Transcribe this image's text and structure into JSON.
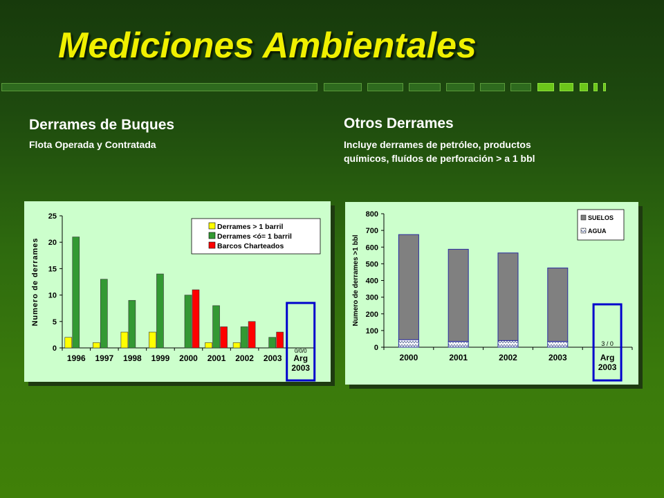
{
  "title": "Mediciones Ambientales",
  "left": {
    "title": "Derrames de Buques",
    "subtitle": "Flota Operada y Contratada"
  },
  "right": {
    "title": "Otros Derrames",
    "subtitle_line1": "Incluye derrames de petróleo, productos",
    "subtitle_line2": "químicos, fluídos de perforación > a 1 bbl"
  },
  "colors": {
    "yellow": "#ffff00",
    "green": "#339933",
    "red": "#ff0000",
    "gray": "#808080",
    "highlight_box": "#0000cc"
  },
  "chart_data": [
    {
      "type": "bar",
      "ylabel": "Numero de derrames",
      "ylim": [
        0,
        25
      ],
      "yticks": [
        0,
        5,
        10,
        15,
        20,
        25
      ],
      "categories": [
        "1996",
        "1997",
        "1998",
        "1999",
        "2000",
        "2001",
        "2002",
        "2003"
      ],
      "extra_category": {
        "line1": "Arg",
        "line2": "2003",
        "value_label": "0/0/0",
        "highlighted": true
      },
      "series": [
        {
          "name": "Derrames > 1 barril",
          "color": "#ffff00",
          "values": [
            2,
            1,
            3,
            3,
            null,
            1,
            1,
            null
          ]
        },
        {
          "name": "Derrames <ó= 1 barril",
          "color": "#339933",
          "values": [
            21,
            13,
            9,
            14,
            10,
            8,
            4,
            2
          ]
        },
        {
          "name": "Barcos Charteados",
          "color": "#ff0000",
          "values": [
            null,
            null,
            null,
            null,
            11,
            4,
            5,
            3
          ]
        }
      ],
      "legend": "top-right",
      "grid": false
    },
    {
      "type": "bar",
      "stacked": true,
      "ylabel": "Numero de derrames >1 bbl",
      "ylim": [
        0,
        800
      ],
      "yticks": [
        0,
        100,
        200,
        300,
        400,
        500,
        600,
        700,
        800
      ],
      "categories": [
        "2000",
        "2001",
        "2002",
        "2003"
      ],
      "extra_category": {
        "line1": "Arg",
        "line2": "2003",
        "value_label": "3 / 0",
        "highlighted": true
      },
      "series": [
        {
          "name": "SUELOS",
          "color": "#808080",
          "values": [
            630,
            552,
            525,
            440
          ]
        },
        {
          "name": "AGUA",
          "pattern": "zigzag",
          "values": [
            45,
            35,
            40,
            35
          ]
        }
      ],
      "legend": "top-right",
      "grid": false
    }
  ]
}
